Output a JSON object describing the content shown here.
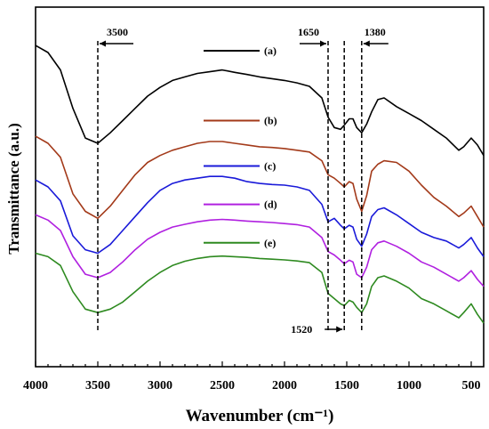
{
  "chart_data": {
    "type": "line",
    "title": "",
    "xlabel": "Wavenumber (cm⁻¹)",
    "ylabel": "Transmittance (a.u.)",
    "xlim": [
      4000,
      400
    ],
    "x_reversed": true,
    "x_ticks": [
      4000,
      3500,
      3000,
      2500,
      2000,
      1500,
      1000,
      500
    ],
    "y_ticks_shown": false,
    "grid": false,
    "legend_placement": "inline, center",
    "series": [
      {
        "name": "(a)",
        "color": "#000000",
        "points": [
          [
            4000,
            7.1
          ],
          [
            3900,
            6.9
          ],
          [
            3800,
            6.4
          ],
          [
            3700,
            5.3
          ],
          [
            3600,
            4.45
          ],
          [
            3500,
            4.3
          ],
          [
            3400,
            4.6
          ],
          [
            3300,
            4.95
          ],
          [
            3200,
            5.3
          ],
          [
            3100,
            5.65
          ],
          [
            3000,
            5.9
          ],
          [
            2900,
            6.1
          ],
          [
            2800,
            6.2
          ],
          [
            2700,
            6.3
          ],
          [
            2600,
            6.35
          ],
          [
            2500,
            6.4
          ],
          [
            2400,
            6.33
          ],
          [
            2300,
            6.27
          ],
          [
            2200,
            6.2
          ],
          [
            2100,
            6.15
          ],
          [
            2000,
            6.1
          ],
          [
            1900,
            6.03
          ],
          [
            1800,
            5.93
          ],
          [
            1700,
            5.6
          ],
          [
            1650,
            5.05
          ],
          [
            1600,
            4.75
          ],
          [
            1550,
            4.7
          ],
          [
            1520,
            4.82
          ],
          [
            1480,
            5.0
          ],
          [
            1450,
            5.0
          ],
          [
            1420,
            4.75
          ],
          [
            1380,
            4.6
          ],
          [
            1340,
            4.85
          ],
          [
            1300,
            5.2
          ],
          [
            1250,
            5.55
          ],
          [
            1200,
            5.6
          ],
          [
            1100,
            5.35
          ],
          [
            1000,
            5.15
          ],
          [
            900,
            4.95
          ],
          [
            800,
            4.7
          ],
          [
            700,
            4.45
          ],
          [
            600,
            4.1
          ],
          [
            560,
            4.2
          ],
          [
            500,
            4.45
          ],
          [
            450,
            4.25
          ],
          [
            400,
            3.95
          ]
        ]
      },
      {
        "name": "(b)",
        "color": "#A33A1A",
        "points": [
          [
            4000,
            4.5
          ],
          [
            3900,
            4.3
          ],
          [
            3800,
            3.9
          ],
          [
            3700,
            2.85
          ],
          [
            3600,
            2.35
          ],
          [
            3500,
            2.15
          ],
          [
            3400,
            2.5
          ],
          [
            3300,
            2.95
          ],
          [
            3200,
            3.4
          ],
          [
            3100,
            3.75
          ],
          [
            3000,
            3.95
          ],
          [
            2900,
            4.1
          ],
          [
            2800,
            4.2
          ],
          [
            2700,
            4.3
          ],
          [
            2600,
            4.35
          ],
          [
            2500,
            4.35
          ],
          [
            2400,
            4.3
          ],
          [
            2300,
            4.25
          ],
          [
            2200,
            4.2
          ],
          [
            2100,
            4.18
          ],
          [
            2000,
            4.15
          ],
          [
            1900,
            4.1
          ],
          [
            1800,
            4.05
          ],
          [
            1700,
            3.8
          ],
          [
            1650,
            3.4
          ],
          [
            1600,
            3.3
          ],
          [
            1550,
            3.15
          ],
          [
            1520,
            3.05
          ],
          [
            1480,
            3.2
          ],
          [
            1450,
            3.15
          ],
          [
            1420,
            2.7
          ],
          [
            1380,
            2.35
          ],
          [
            1340,
            2.8
          ],
          [
            1300,
            3.5
          ],
          [
            1250,
            3.7
          ],
          [
            1200,
            3.8
          ],
          [
            1100,
            3.75
          ],
          [
            1000,
            3.5
          ],
          [
            900,
            3.1
          ],
          [
            800,
            2.75
          ],
          [
            700,
            2.5
          ],
          [
            600,
            2.2
          ],
          [
            560,
            2.3
          ],
          [
            500,
            2.5
          ],
          [
            450,
            2.2
          ],
          [
            400,
            1.9
          ]
        ]
      },
      {
        "name": "(c)",
        "color": "#1A1AD9",
        "points": [
          [
            4000,
            3.25
          ],
          [
            3900,
            3.05
          ],
          [
            3800,
            2.65
          ],
          [
            3700,
            1.65
          ],
          [
            3600,
            1.25
          ],
          [
            3500,
            1.15
          ],
          [
            3400,
            1.4
          ],
          [
            3300,
            1.8
          ],
          [
            3200,
            2.2
          ],
          [
            3100,
            2.6
          ],
          [
            3000,
            2.95
          ],
          [
            2900,
            3.15
          ],
          [
            2800,
            3.25
          ],
          [
            2700,
            3.3
          ],
          [
            2600,
            3.35
          ],
          [
            2500,
            3.35
          ],
          [
            2400,
            3.3
          ],
          [
            2350,
            3.25
          ],
          [
            2300,
            3.2
          ],
          [
            2200,
            3.15
          ],
          [
            2100,
            3.12
          ],
          [
            2000,
            3.1
          ],
          [
            1900,
            3.05
          ],
          [
            1800,
            2.95
          ],
          [
            1700,
            2.55
          ],
          [
            1650,
            2.05
          ],
          [
            1600,
            2.15
          ],
          [
            1550,
            1.95
          ],
          [
            1520,
            1.85
          ],
          [
            1480,
            1.95
          ],
          [
            1450,
            1.9
          ],
          [
            1420,
            1.55
          ],
          [
            1380,
            1.35
          ],
          [
            1340,
            1.7
          ],
          [
            1300,
            2.2
          ],
          [
            1250,
            2.4
          ],
          [
            1200,
            2.45
          ],
          [
            1100,
            2.25
          ],
          [
            1000,
            2.0
          ],
          [
            900,
            1.75
          ],
          [
            800,
            1.6
          ],
          [
            700,
            1.5
          ],
          [
            600,
            1.3
          ],
          [
            560,
            1.4
          ],
          [
            500,
            1.6
          ],
          [
            450,
            1.3
          ],
          [
            400,
            1.05
          ]
        ]
      },
      {
        "name": "(d)",
        "color": "#B020E0",
        "points": [
          [
            4000,
            2.25
          ],
          [
            3900,
            2.1
          ],
          [
            3800,
            1.8
          ],
          [
            3700,
            1.05
          ],
          [
            3600,
            0.55
          ],
          [
            3500,
            0.45
          ],
          [
            3400,
            0.6
          ],
          [
            3300,
            0.9
          ],
          [
            3200,
            1.25
          ],
          [
            3100,
            1.55
          ],
          [
            3000,
            1.75
          ],
          [
            2900,
            1.9
          ],
          [
            2800,
            1.98
          ],
          [
            2700,
            2.05
          ],
          [
            2600,
            2.1
          ],
          [
            2500,
            2.12
          ],
          [
            2400,
            2.1
          ],
          [
            2300,
            2.07
          ],
          [
            2200,
            2.05
          ],
          [
            2100,
            2.03
          ],
          [
            2000,
            2.0
          ],
          [
            1900,
            1.97
          ],
          [
            1800,
            1.9
          ],
          [
            1700,
            1.6
          ],
          [
            1650,
            1.2
          ],
          [
            1600,
            1.1
          ],
          [
            1550,
            0.95
          ],
          [
            1520,
            0.85
          ],
          [
            1480,
            0.95
          ],
          [
            1450,
            0.9
          ],
          [
            1420,
            0.55
          ],
          [
            1380,
            0.45
          ],
          [
            1340,
            0.75
          ],
          [
            1300,
            1.25
          ],
          [
            1250,
            1.45
          ],
          [
            1200,
            1.5
          ],
          [
            1100,
            1.35
          ],
          [
            1000,
            1.15
          ],
          [
            900,
            0.9
          ],
          [
            800,
            0.75
          ],
          [
            700,
            0.55
          ],
          [
            600,
            0.35
          ],
          [
            560,
            0.45
          ],
          [
            500,
            0.65
          ],
          [
            450,
            0.4
          ],
          [
            400,
            0.2
          ]
        ]
      },
      {
        "name": "(e)",
        "color": "#2E8A20",
        "points": [
          [
            4000,
            1.15
          ],
          [
            3900,
            1.05
          ],
          [
            3800,
            0.8
          ],
          [
            3700,
            0.05
          ],
          [
            3600,
            -0.45
          ],
          [
            3500,
            -0.55
          ],
          [
            3400,
            -0.45
          ],
          [
            3300,
            -0.25
          ],
          [
            3200,
            0.05
          ],
          [
            3100,
            0.35
          ],
          [
            3000,
            0.6
          ],
          [
            2900,
            0.8
          ],
          [
            2800,
            0.92
          ],
          [
            2700,
            1.0
          ],
          [
            2600,
            1.05
          ],
          [
            2500,
            1.07
          ],
          [
            2400,
            1.05
          ],
          [
            2300,
            1.03
          ],
          [
            2200,
            1.0
          ],
          [
            2100,
            0.98
          ],
          [
            2000,
            0.96
          ],
          [
            1900,
            0.93
          ],
          [
            1800,
            0.88
          ],
          [
            1700,
            0.6
          ],
          [
            1650,
            0.0
          ],
          [
            1600,
            -0.15
          ],
          [
            1550,
            -0.3
          ],
          [
            1520,
            -0.35
          ],
          [
            1480,
            -0.2
          ],
          [
            1450,
            -0.25
          ],
          [
            1420,
            -0.4
          ],
          [
            1380,
            -0.55
          ],
          [
            1340,
            -0.3
          ],
          [
            1300,
            0.2
          ],
          [
            1250,
            0.45
          ],
          [
            1200,
            0.5
          ],
          [
            1100,
            0.35
          ],
          [
            1000,
            0.15
          ],
          [
            900,
            -0.15
          ],
          [
            800,
            -0.3
          ],
          [
            700,
            -0.5
          ],
          [
            600,
            -0.7
          ],
          [
            560,
            -0.55
          ],
          [
            500,
            -0.3
          ],
          [
            450,
            -0.6
          ],
          [
            400,
            -0.85
          ]
        ]
      }
    ],
    "ylim": [
      -2.1,
      8.2
    ],
    "legend_items": [
      {
        "label": "(a)",
        "color": "#000000",
        "x_from": 2650,
        "x_to": 2200,
        "y": 6.95
      },
      {
        "label": "(b)",
        "color": "#A33A1A",
        "x_from": 2650,
        "x_to": 2200,
        "y": 4.95
      },
      {
        "label": "(c)",
        "color": "#1A1AD9",
        "x_from": 2650,
        "x_to": 2200,
        "y": 3.65
      },
      {
        "label": "(d)",
        "color": "#B020E0",
        "x_from": 2650,
        "x_to": 2200,
        "y": 2.55
      },
      {
        "label": "(e)",
        "color": "#2E8A20",
        "x_from": 2650,
        "x_to": 2200,
        "y": 1.45
      }
    ],
    "reference_lines": [
      {
        "wavenumber": 3500,
        "label": "3500"
      },
      {
        "wavenumber": 1650,
        "label": "1650"
      },
      {
        "wavenumber": 1520,
        "label": "1520"
      },
      {
        "wavenumber": 1380,
        "label": "1380"
      }
    ]
  }
}
